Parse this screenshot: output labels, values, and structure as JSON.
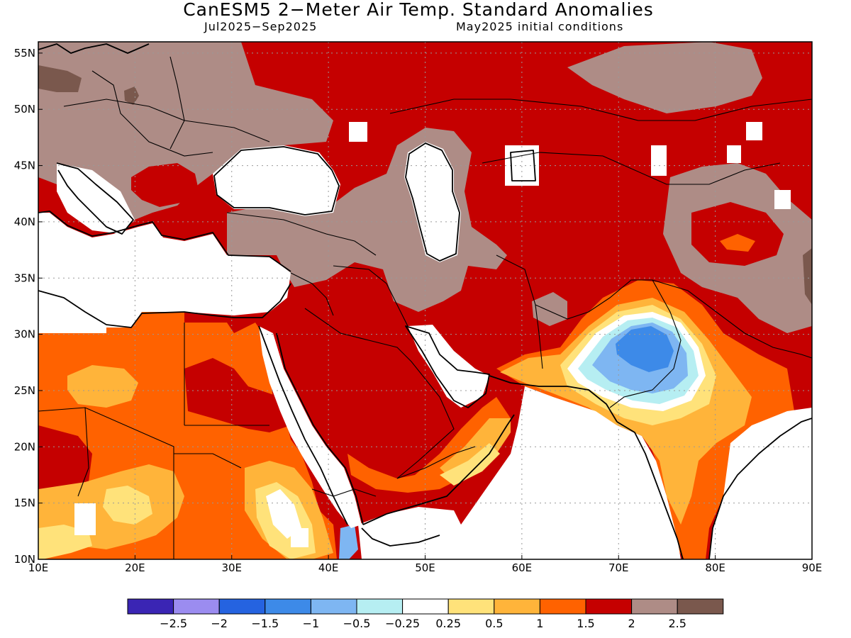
{
  "title": "CanESM5 2−Meter Air Temp. Standard Anomalies",
  "subtitle_left": "Jul2025−Sep2025",
  "subtitle_right": "May2025 initial conditions",
  "map": {
    "lon_range": [
      10,
      90
    ],
    "lat_range": [
      10,
      56
    ],
    "lon_ticks": [
      "10E",
      "20E",
      "30E",
      "40E",
      "50E",
      "60E",
      "70E",
      "80E",
      "90E"
    ],
    "lat_ticks": [
      "55N",
      "50N",
      "45N",
      "40N",
      "35N",
      "30N",
      "25N",
      "20N",
      "15N",
      "10N"
    ],
    "colors": {
      "cat_neg_2_5": "#3a25b4",
      "cat_neg_2": "#9b8cf0",
      "cat_neg_1_5": "#2563e0",
      "cat_neg_1": "#3d8ae8",
      "cat_neg_0_5": "#7eb6f2",
      "cat_neg_0_25": "#b6eef2",
      "cat_neutral": "#ffffff",
      "cat_0_25": "#ffe27a",
      "cat_0_5": "#ffb43a",
      "cat_1": "#ff6200",
      "cat_1_5": "#c50000",
      "cat_2": "#ae8c86",
      "cat_2_5": "#7a584d"
    }
  },
  "colorbar": {
    "labels": [
      "−2.5",
      "−2",
      "−1.5",
      "−1",
      "−0.5",
      "−0.25",
      "0.25",
      "0.5",
      "1",
      "1.5",
      "2",
      "2.5"
    ],
    "swatches": [
      "#3a25b4",
      "#9b8cf0",
      "#2563e0",
      "#3d8ae8",
      "#7eb6f2",
      "#b6eef2",
      "#ffffff",
      "#ffe27a",
      "#ffb43a",
      "#ff6200",
      "#c50000",
      "#ae8c86",
      "#7a584d"
    ]
  }
}
